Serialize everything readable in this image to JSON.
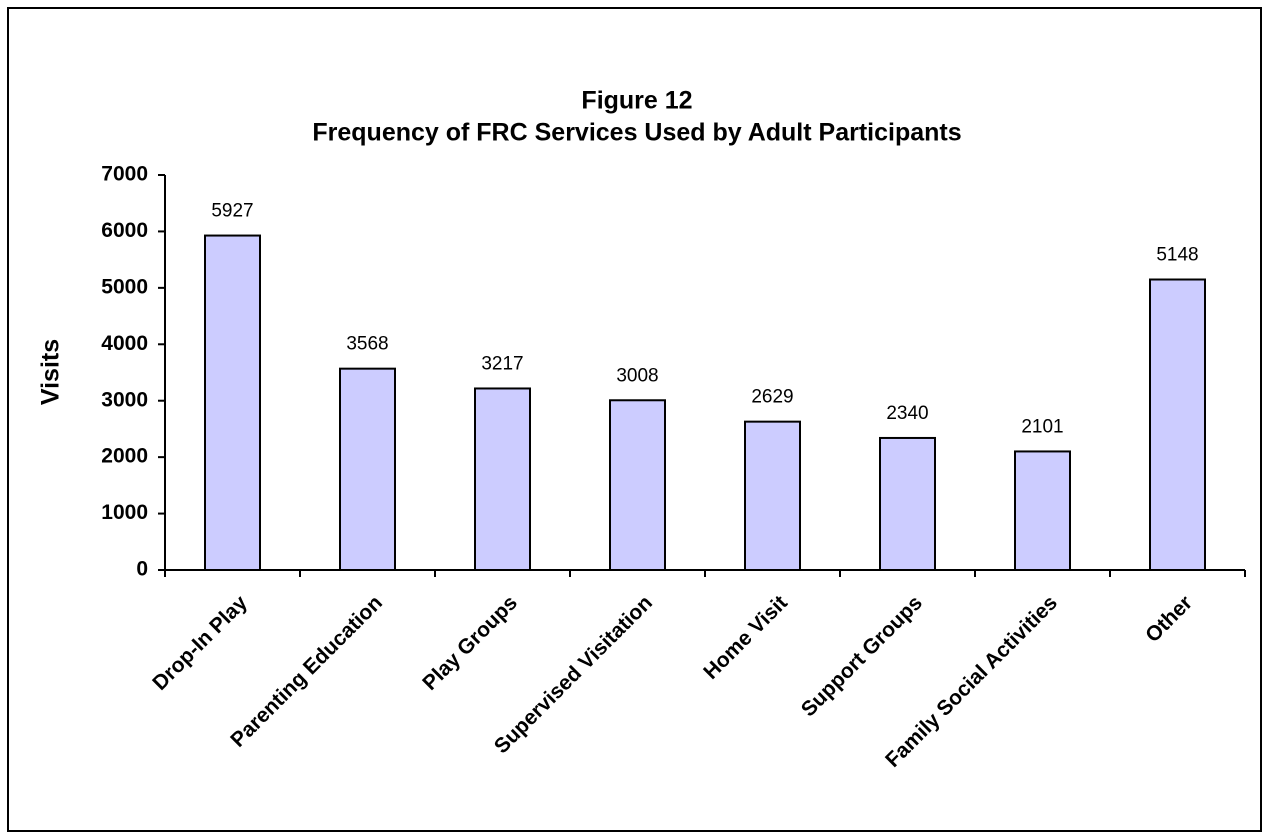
{
  "chart_data": {
    "type": "bar",
    "title": "Figure 12",
    "subtitle": "Frequency of FRC Services Used by Adult Participants",
    "y_label": "Visits",
    "categories": [
      "Drop-In Play",
      "Parenting Education",
      "Play Groups",
      "Supervised Visitation",
      "Home Visit",
      "Support Groups",
      "Family Social Activities",
      "Other"
    ],
    "values": [
      5927,
      3568,
      3217,
      3008,
      2629,
      2340,
      2101,
      5148
    ],
    "color": "#ccccff",
    "ylim": [
      0,
      7000
    ],
    "yticks": [
      0,
      1000,
      2000,
      3000,
      4000,
      5000,
      6000,
      7000
    ],
    "grid": false
  }
}
